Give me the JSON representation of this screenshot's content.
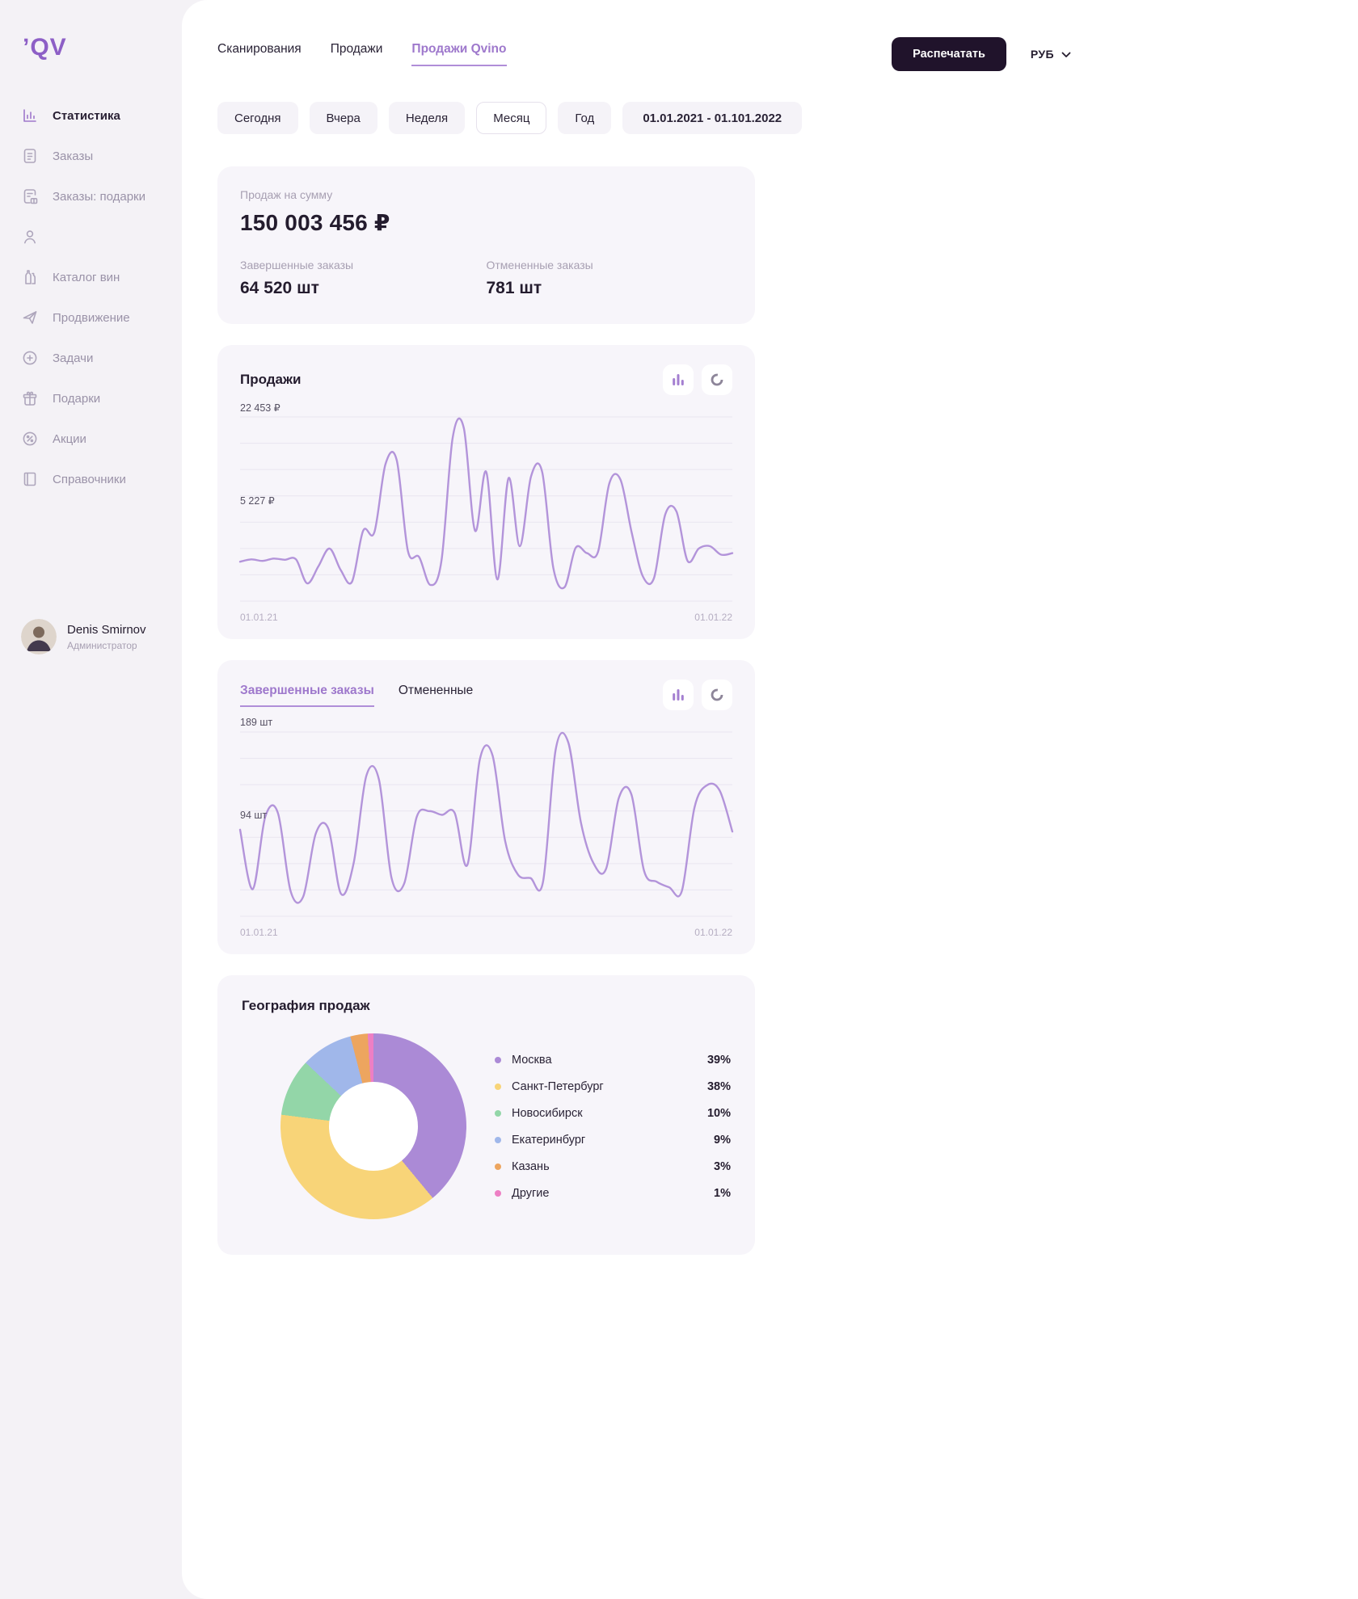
{
  "app": {
    "logo": "ʼQV"
  },
  "sidebar": {
    "items": [
      {
        "label": "Статистика",
        "icon": "stats-icon",
        "active": true
      },
      {
        "label": "Заказы",
        "icon": "orders-icon",
        "active": false
      },
      {
        "label": "Заказы: подарки",
        "icon": "orders-gifts-icon",
        "active": false
      },
      {
        "label": "",
        "icon": "clients-icon",
        "active": false
      },
      {
        "label": "Каталог вин",
        "icon": "wine-catalog-icon",
        "active": false
      },
      {
        "label": "Продвижение",
        "icon": "promotion-icon",
        "active": false
      },
      {
        "label": "Задачи",
        "icon": "tasks-icon",
        "active": false
      },
      {
        "label": "Подарки",
        "icon": "gifts-icon",
        "active": false
      },
      {
        "label": "Акции",
        "icon": "promo-icon",
        "active": false
      },
      {
        "label": "Справочники",
        "icon": "reference-icon",
        "active": false
      }
    ],
    "user": {
      "name": "Denis Smirnov",
      "role": "Администратор"
    }
  },
  "header": {
    "tabs": [
      {
        "label": "Сканирования",
        "active": false
      },
      {
        "label": "Продажи",
        "active": false
      },
      {
        "label": "Продажи Qvino",
        "active": true
      }
    ],
    "print_button": "Распечатать",
    "currency": "РУБ"
  },
  "filters": {
    "chips": [
      {
        "label": "Сегодня",
        "active": false
      },
      {
        "label": "Вчера",
        "active": false
      },
      {
        "label": "Неделя",
        "active": false
      },
      {
        "label": "Месяц",
        "active": true
      },
      {
        "label": "Год",
        "active": false
      }
    ],
    "date_range": "01.01.2021 - 01.101.2022"
  },
  "summary": {
    "sales_label": "Продаж на сумму",
    "sales_value": "150 003 456 ₽",
    "completed_label": "Завершенные заказы",
    "completed_value": "64 520 шт",
    "cancelled_label": "Отмененные заказы",
    "cancelled_value": "781 шт"
  },
  "chart_data": [
    {
      "id": "sales",
      "type": "line",
      "title": "Продажи",
      "color": "#b394da",
      "ylim": [
        0,
        24000
      ],
      "grid": true,
      "y_axis_labels": [
        {
          "text": "22 453 ₽",
          "y_frac": 0.0
        },
        {
          "text": "5 227 ₽",
          "y_frac": 0.5
        }
      ],
      "x_labels": [
        "01.01.21",
        "01.01.22"
      ],
      "values": [
        5200,
        5500,
        5300,
        5600,
        5450,
        5500,
        2400,
        4600,
        6900,
        4100,
        2600,
        9200,
        9000,
        17800,
        18300,
        6600,
        5800,
        2200,
        5300,
        21200,
        22453,
        9200,
        16800,
        2900,
        16000,
        7200,
        16200,
        16800,
        4400,
        1900,
        7000,
        6300,
        6500,
        15300,
        15800,
        9000,
        3300,
        3100,
        11300,
        11700,
        5300,
        6900,
        7200,
        6100,
        6300
      ]
    },
    {
      "id": "orders",
      "type": "line",
      "tabs": [
        {
          "label": "Завершенные заказы",
          "active": true
        },
        {
          "label": "Отмененные",
          "active": false
        }
      ],
      "color": "#b394da",
      "ylim": [
        0,
        200
      ],
      "grid": true,
      "y_axis_labels": [
        {
          "text": "189 шт",
          "y_frac": 0.0
        },
        {
          "text": "94 шт",
          "y_frac": 0.5
        }
      ],
      "x_labels": [
        "01.01.21",
        "01.01.22"
      ],
      "values": [
        94,
        30,
        108,
        112,
        28,
        22,
        90,
        95,
        25,
        58,
        152,
        148,
        42,
        36,
        108,
        114,
        110,
        112,
        56,
        170,
        174,
        82,
        46,
        42,
        38,
        180,
        188,
        102,
        58,
        52,
        128,
        132,
        50,
        38,
        32,
        28,
        118,
        142,
        136,
        92
      ]
    },
    {
      "id": "geography",
      "type": "donut",
      "title": "География продаж",
      "segments": [
        {
          "label": "Москва",
          "value": 39,
          "color": "#ab8ad6"
        },
        {
          "label": "Санкт-Петербург",
          "value": 38,
          "color": "#f8d478"
        },
        {
          "label": "Новосибирск",
          "value": 10,
          "color": "#93d6a8"
        },
        {
          "label": "Екатеринбург",
          "value": 9,
          "color": "#a0b7ea"
        },
        {
          "label": "Казань",
          "value": 3,
          "color": "#eda55f"
        },
        {
          "label": "Другие",
          "value": 1,
          "color": "#ed7fc4"
        }
      ]
    }
  ],
  "colors": {
    "accent": "#9e78cc",
    "line": "#b394da",
    "dark_button": "#20132b",
    "gridline": "#e9e5f0"
  }
}
